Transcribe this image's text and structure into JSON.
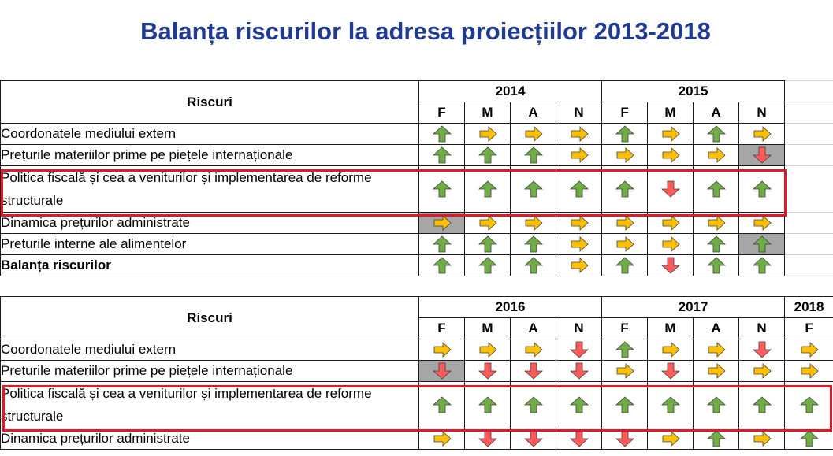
{
  "title": "Balanța riscurilor la adresa proiecțiilor 2013-2018",
  "colors": {
    "up": "#70ad47",
    "flat": "#ffc000",
    "down": "#ff5b5b",
    "highlight": "#e0192a",
    "title": "#1f3a8f"
  },
  "arrow_icons": {
    "up": "green-up-arrow-icon",
    "flat": "yellow-right-arrow-icon",
    "down": "red-down-arrow-icon"
  },
  "table1": {
    "header": "Riscuri",
    "years": [
      {
        "label": "2014"
      },
      {
        "label": "2015"
      }
    ],
    "months": [
      "F",
      "M",
      "A",
      "N",
      "F",
      "M",
      "A",
      "N"
    ],
    "rows": [
      {
        "label": "Coordonatele mediului extern",
        "bold": false,
        "tall": false,
        "cells": [
          "up",
          "flat",
          "flat",
          "flat",
          "up",
          "flat",
          "up",
          "flat"
        ],
        "gray": []
      },
      {
        "label": "Prețurile materiilor prime pe piețele internaționale",
        "bold": false,
        "tall": false,
        "cells": [
          "up",
          "up",
          "up",
          "flat",
          "flat",
          "flat",
          "flat",
          "down"
        ],
        "gray": [
          7
        ]
      },
      {
        "label": "Politica fiscală și cea a veniturilor și implementarea de reforme structurale",
        "bold": false,
        "tall": true,
        "cells": [
          "up",
          "up",
          "up",
          "up",
          "up",
          "down",
          "up",
          "up"
        ],
        "gray": []
      },
      {
        "label": "Dinamica prețurilor administrate",
        "bold": false,
        "tall": false,
        "cells": [
          "flat",
          "flat",
          "flat",
          "flat",
          "flat",
          "flat",
          "flat",
          "flat"
        ],
        "gray": [
          0
        ]
      },
      {
        "label": "Preturile interne ale alimentelor",
        "bold": false,
        "tall": false,
        "cells": [
          "up",
          "up",
          "up",
          "flat",
          "flat",
          "flat",
          "up",
          "up"
        ],
        "gray": [
          7
        ]
      },
      {
        "label": "Balanța riscurilor",
        "bold": true,
        "tall": false,
        "cells": [
          "up",
          "up",
          "up",
          "flat",
          "up",
          "down",
          "up",
          "up"
        ],
        "gray": []
      }
    ]
  },
  "table2": {
    "header": "Riscuri",
    "years": [
      {
        "label": "2016"
      },
      {
        "label": "2017"
      },
      {
        "label": "2018"
      }
    ],
    "months": [
      "F",
      "M",
      "A",
      "N",
      "F",
      "M",
      "A",
      "N",
      "F"
    ],
    "rows": [
      {
        "label": "Coordonatele mediului extern",
        "bold": false,
        "tall": false,
        "cells": [
          "flat",
          "flat",
          "flat",
          "down",
          "up",
          "flat",
          "flat",
          "down",
          "flat"
        ],
        "gray": []
      },
      {
        "label": "Prețurile materiilor prime pe piețele internaționale",
        "bold": false,
        "tall": false,
        "cells": [
          "down",
          "down",
          "down",
          "down",
          "flat",
          "down",
          "flat",
          "flat",
          "flat"
        ],
        "gray": [
          0
        ]
      },
      {
        "label": "Politica fiscală și cea a veniturilor și implementarea de reforme structurale",
        "bold": false,
        "tall": true,
        "cells": [
          "up",
          "up",
          "up",
          "up",
          "up",
          "up",
          "up",
          "up",
          "up"
        ],
        "gray": []
      },
      {
        "label": "Dinamica prețurilor administrate",
        "bold": false,
        "tall": false,
        "cells": [
          "flat",
          "down",
          "down",
          "down",
          "down",
          "flat",
          "up",
          "flat",
          "up"
        ],
        "gray": []
      }
    ]
  }
}
